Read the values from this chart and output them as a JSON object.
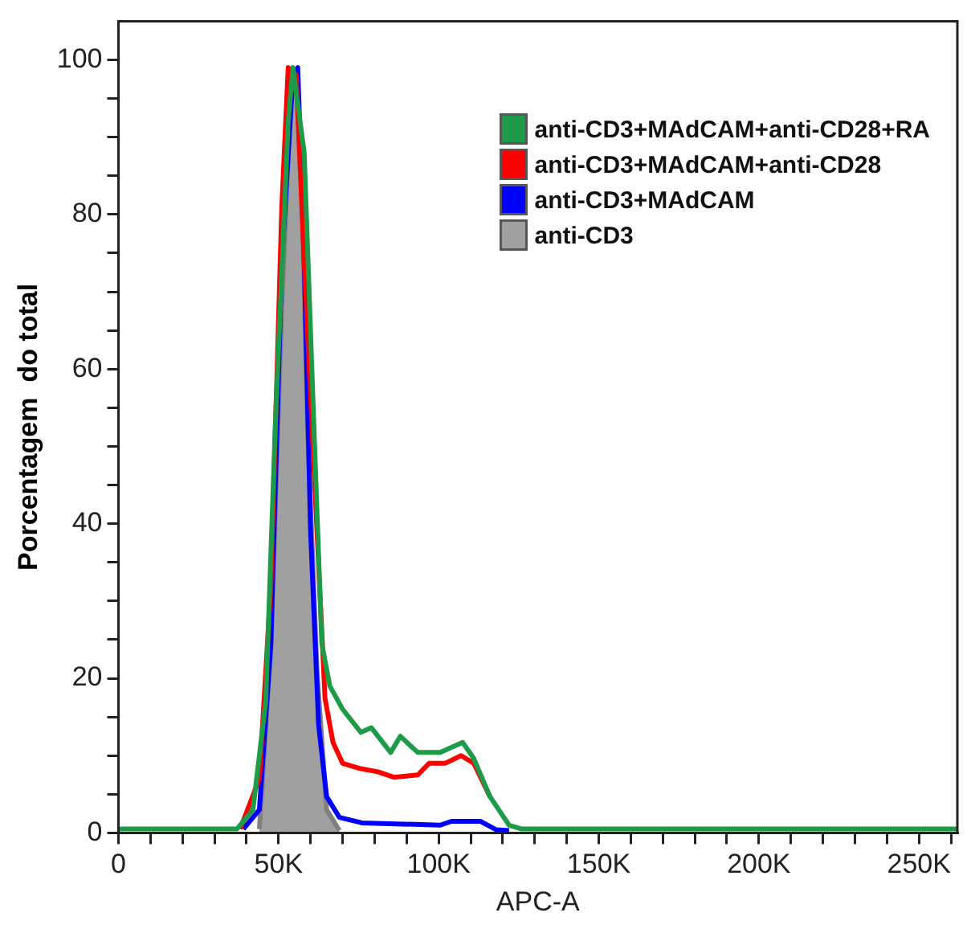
{
  "chart_data": {
    "type": "line",
    "xlabel": "APC-A",
    "ylabel": "Porcentagem  do total",
    "xlim": [
      0,
      262000
    ],
    "ylim": [
      0,
      105
    ],
    "xticks": [
      0,
      {
        "value": 10000,
        "label": null
      },
      {
        "value": 20000,
        "label": null
      },
      {
        "value": 30000,
        "label": null
      },
      {
        "value": 40000,
        "label": null
      },
      {
        "value": 50000,
        "label": "50K"
      },
      {
        "value": 60000,
        "label": null
      },
      {
        "value": 70000,
        "label": null
      },
      {
        "value": 80000,
        "label": null
      },
      {
        "value": 90000,
        "label": null
      },
      {
        "value": 100000,
        "label": "100K"
      },
      {
        "value": 110000,
        "label": null
      },
      {
        "value": 120000,
        "label": null
      },
      {
        "value": 130000,
        "label": null
      },
      {
        "value": 140000,
        "label": null
      },
      {
        "value": 150000,
        "label": "150K"
      },
      {
        "value": 160000,
        "label": null
      },
      {
        "value": 170000,
        "label": null
      },
      {
        "value": 180000,
        "label": null
      },
      {
        "value": 190000,
        "label": null
      },
      {
        "value": 200000,
        "label": "200K"
      },
      {
        "value": 210000,
        "label": null
      },
      {
        "value": 220000,
        "label": null
      },
      {
        "value": 230000,
        "label": null
      },
      {
        "value": 240000,
        "label": null
      },
      {
        "value": 250000,
        "label": "250K"
      },
      {
        "value": 260000,
        "label": null
      }
    ],
    "yticks": [
      0,
      {
        "value": 5,
        "label": null
      },
      {
        "value": 10,
        "label": null
      },
      {
        "value": 15,
        "label": null
      },
      20,
      {
        "value": 25,
        "label": null
      },
      {
        "value": 30,
        "label": null
      },
      {
        "value": 35,
        "label": null
      },
      40,
      {
        "value": 45,
        "label": null
      },
      {
        "value": 50,
        "label": null
      },
      {
        "value": 55,
        "label": null
      },
      60,
      {
        "value": 65,
        "label": null
      },
      {
        "value": 70,
        "label": null
      },
      {
        "value": 75,
        "label": null
      },
      80,
      {
        "value": 85,
        "label": null
      },
      {
        "value": 90,
        "label": null
      },
      {
        "value": 95,
        "label": null
      },
      100
    ],
    "grid": false,
    "legend": "top right",
    "marker": "none",
    "series": [
      {
        "name": "anti-CD3+MAdCAM+anti-CD28+RA",
        "color": "#1e9b48",
        "x": [
          0,
          37000,
          42000,
          46000,
          49000,
          53000,
          54500,
          58000,
          61000,
          63500,
          66000,
          70000,
          75700,
          79000,
          85000,
          88000,
          93500,
          100500,
          107500,
          111000,
          116000,
          122000,
          126000,
          262000
        ],
        "values": [
          0.5,
          0.5,
          3,
          17,
          53,
          92,
          99,
          88,
          53,
          24.5,
          19,
          16,
          13,
          13.6,
          10.4,
          12.5,
          10.4,
          10.4,
          11.7,
          9.6,
          4.7,
          1,
          0.5,
          0.5
        ]
      },
      {
        "name": "anti-CD3+MAdCAM+anti-CD28",
        "color": "#ff0000",
        "x": [
          38000,
          44000,
          47600,
          51000,
          53000,
          55500,
          58000,
          62000,
          64500,
          67000,
          70000,
          75700,
          81000,
          86000,
          93500,
          97000,
          102000,
          107000,
          111000,
          116000
        ],
        "values": [
          0.5,
          7,
          32,
          81,
          99,
          98,
          74,
          39,
          17.4,
          11.7,
          9,
          8.3,
          7.9,
          7.2,
          7.5,
          9,
          9,
          10,
          9,
          4.7
        ]
      },
      {
        "name": "anti-CD3+MAdCAM",
        "color": "#0000ff",
        "x": [
          39000,
          44000,
          47600,
          51000,
          54500,
          56000,
          58000,
          60000,
          62500,
          65000,
          69000,
          76000,
          100500,
          104000,
          113000,
          118000,
          122000
        ],
        "values": [
          0.5,
          3,
          24.5,
          74,
          98,
          99,
          74,
          39,
          14,
          4.7,
          2,
          1.3,
          1,
          1.5,
          1.5,
          0.4,
          0.3
        ]
      },
      {
        "name": "anti-CD3",
        "type": "area",
        "color": "#a0a0a0",
        "x": [
          44000,
          47600,
          51000,
          53800,
          55500,
          57000,
          59000,
          62000,
          65000,
          69000
        ],
        "values": [
          0.5,
          24,
          68,
          95.5,
          98,
          88,
          53,
          21,
          3,
          0.3
        ]
      }
    ]
  }
}
